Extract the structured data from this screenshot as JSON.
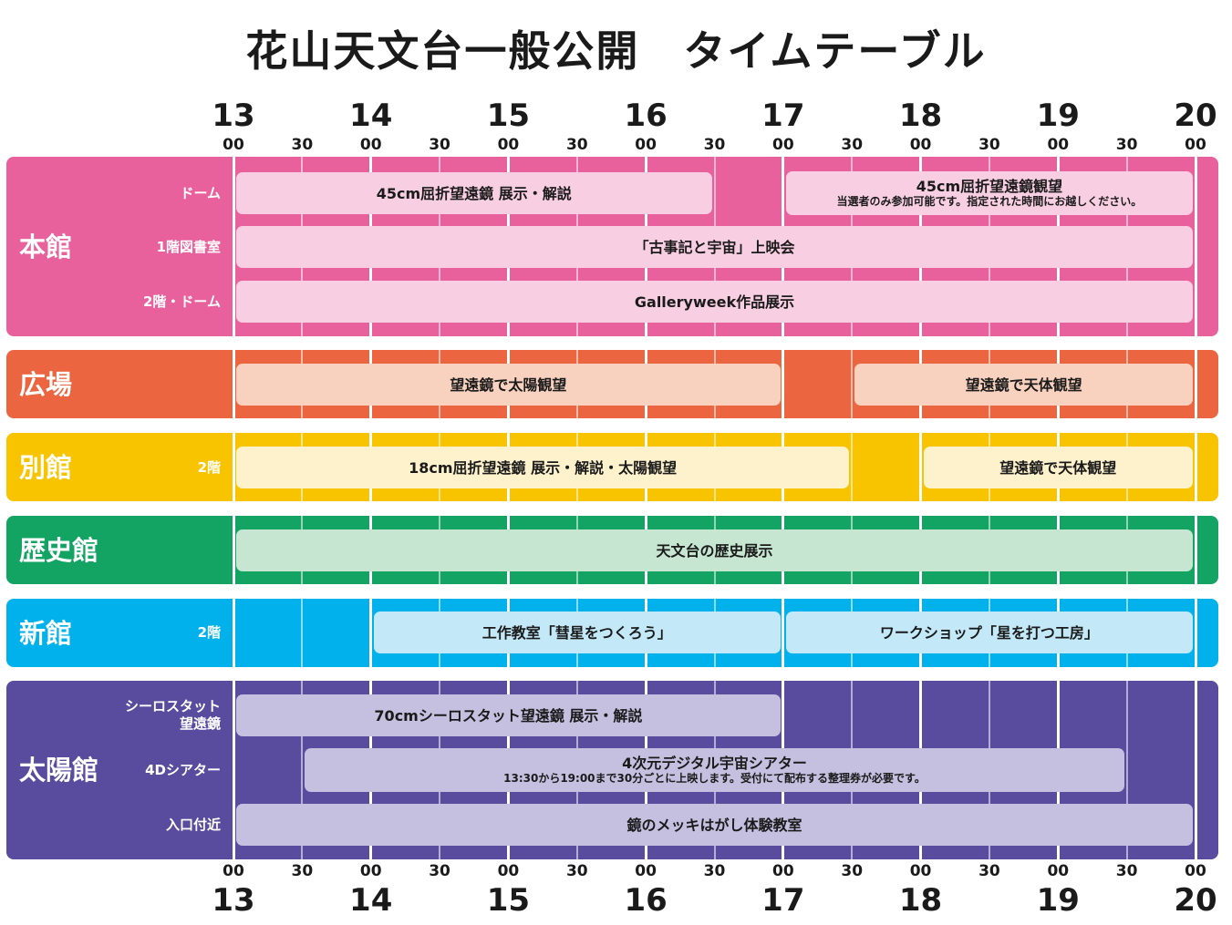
{
  "title": "花山天文台一般公開　タイムテーブル",
  "time_axis": {
    "hours": [
      "13",
      "14",
      "15",
      "16",
      "17",
      "18",
      "19",
      "20"
    ],
    "minutes": [
      "00",
      "30",
      "00",
      "30",
      "00",
      "30",
      "00",
      "30",
      "00",
      "30",
      "00",
      "30",
      "00",
      "30",
      "00"
    ]
  },
  "colors": {
    "honkan": "#e8609c",
    "honkan_bar": "#f8cfe2",
    "hiroba": "#eb6640",
    "hiroba_bar": "#f8d2bf",
    "bekkan": "#f8c400",
    "bekkan_bar": "#fdf2cc",
    "rekishikan": "#13a363",
    "rekishikan_bar": "#c6e6d2",
    "shinkan": "#00b1ec",
    "shinkan_bar": "#c3e9f8",
    "taiyokan": "#594c9e",
    "taiyokan_bar": "#c6c0e0"
  },
  "rows": [
    {
      "id": "honkan",
      "venue": "本館",
      "sublabels": [
        "ドーム",
        "1階図書室",
        "2階・ドーム"
      ],
      "events": [
        {
          "lane": 0,
          "start": "13:00",
          "end": "16:30",
          "label": "45cm屈折望遠鏡 展示・解説"
        },
        {
          "lane": 0,
          "start": "17:00",
          "end": "20:00",
          "label": "45cm屈折望遠鏡観望",
          "note": "当選者のみ参加可能です。指定された時間にお越しください。"
        },
        {
          "lane": 1,
          "start": "13:00",
          "end": "20:00",
          "label": "「古事記と宇宙」上映会"
        },
        {
          "lane": 2,
          "start": "13:00",
          "end": "20:00",
          "label": "Galleryweek作品展示"
        }
      ]
    },
    {
      "id": "hiroba",
      "venue": "広場",
      "sublabels": [
        ""
      ],
      "events": [
        {
          "lane": 0,
          "start": "13:00",
          "end": "17:00",
          "label": "望遠鏡で太陽観望"
        },
        {
          "lane": 0,
          "start": "17:30",
          "end": "20:00",
          "label": "望遠鏡で天体観望"
        }
      ]
    },
    {
      "id": "bekkan",
      "venue": "別館",
      "sublabels": [
        "2階"
      ],
      "events": [
        {
          "lane": 0,
          "start": "13:00",
          "end": "17:30",
          "label": "18cm屈折望遠鏡 展示・解説・太陽観望"
        },
        {
          "lane": 0,
          "start": "18:00",
          "end": "20:00",
          "label": "望遠鏡で天体観望"
        }
      ]
    },
    {
      "id": "rekishikan",
      "venue": "歴史館",
      "sublabels": [
        ""
      ],
      "events": [
        {
          "lane": 0,
          "start": "13:00",
          "end": "20:00",
          "label": "天文台の歴史展示"
        }
      ]
    },
    {
      "id": "shinkan",
      "venue": "新館",
      "sublabels": [
        "2階"
      ],
      "events": [
        {
          "lane": 0,
          "start": "14:00",
          "end": "17:00",
          "label": "工作教室「彗星をつくろう」"
        },
        {
          "lane": 0,
          "start": "17:00",
          "end": "20:00",
          "label": "ワークショップ「星を打つ工房」"
        }
      ]
    },
    {
      "id": "taiyokan",
      "venue": "太陽館",
      "sublabels": [
        "シーロスタット\n望遠鏡",
        "4Dシアター",
        "入口付近"
      ],
      "events": [
        {
          "lane": 0,
          "start": "13:00",
          "end": "17:00",
          "label": "70cmシーロスタット望遠鏡 展示・解説"
        },
        {
          "lane": 1,
          "start": "13:30",
          "end": "19:30",
          "label": "4次元デジタル宇宙シアター",
          "note": "13:30から19:00まで30分ごとに上映します。受付にて配布する整理券が必要です。"
        },
        {
          "lane": 2,
          "start": "13:00",
          "end": "20:00",
          "label": "鏡のメッキはがし体験教室"
        }
      ]
    }
  ]
}
